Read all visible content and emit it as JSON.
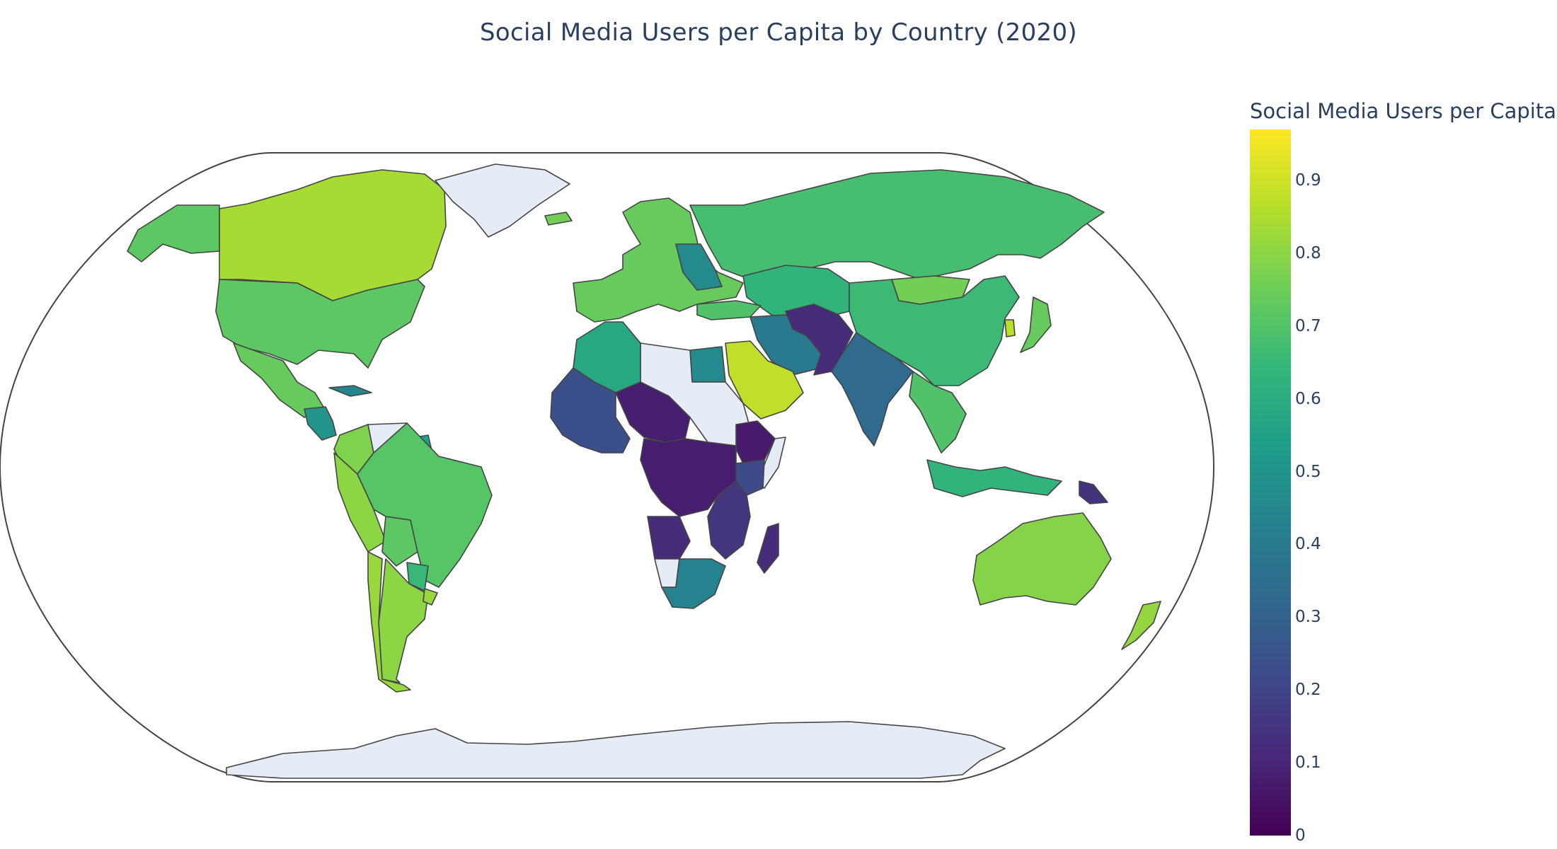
{
  "chart_data": {
    "type": "choropleth",
    "title": "Social Media Users per Capita by Country (2020)",
    "projection": "natural earth",
    "colorscale": "Viridis",
    "colorbar": {
      "title": "Social Media Users per Capita",
      "range": [
        0,
        0.97
      ],
      "ticks": [
        "0",
        "0.1",
        "0.2",
        "0.3",
        "0.4",
        "0.5",
        "0.6",
        "0.7",
        "0.8",
        "0.9"
      ]
    },
    "missing_color": "#e5ecf6",
    "border_color": "#444444",
    "countries": [
      {
        "name": "Canada",
        "value": 0.84
      },
      {
        "name": "United States",
        "value": 0.72
      },
      {
        "name": "Alaska (United States)",
        "value": 0.72
      },
      {
        "name": "Mexico",
        "value": 0.74
      },
      {
        "name": "Central America",
        "value": 0.5
      },
      {
        "name": "Cuba",
        "value": 0.45
      },
      {
        "name": "Colombia",
        "value": 0.78
      },
      {
        "name": "Venezuela",
        "value": null
      },
      {
        "name": "Guyana / Suriname",
        "value": 0.55
      },
      {
        "name": "Peru",
        "value": 0.8
      },
      {
        "name": "Bolivia",
        "value": 0.72
      },
      {
        "name": "Brazil",
        "value": 0.71
      },
      {
        "name": "Paraguay",
        "value": 0.65
      },
      {
        "name": "Argentina",
        "value": 0.8
      },
      {
        "name": "Chile",
        "value": 0.82
      },
      {
        "name": "Uruguay",
        "value": 0.82
      },
      {
        "name": "Greenland",
        "value": null
      },
      {
        "name": "Iceland",
        "value": 0.76
      },
      {
        "name": "Europe",
        "value": 0.74
      },
      {
        "name": "Ukraine / Belarus",
        "value": 0.46
      },
      {
        "name": "Russia",
        "value": 0.68
      },
      {
        "name": "Kazakhstan",
        "value": 0.63
      },
      {
        "name": "Mongolia",
        "value": 0.76
      },
      {
        "name": "China",
        "value": 0.66
      },
      {
        "name": "Japan",
        "value": 0.74
      },
      {
        "name": "South Korea",
        "value": 0.87
      },
      {
        "name": "Turkey",
        "value": 0.7
      },
      {
        "name": "Iran",
        "value": 0.4
      },
      {
        "name": "Afghanistan / Pakistan",
        "value": 0.12
      },
      {
        "name": "India",
        "value": 0.33
      },
      {
        "name": "Saudi Arabia / Arabian Peninsula",
        "value": 0.88
      },
      {
        "name": "Egypt",
        "value": 0.46
      },
      {
        "name": "Libya / Sudan",
        "value": null
      },
      {
        "name": "Algeria / Morocco",
        "value": 0.58
      },
      {
        "name": "West Africa",
        "value": 0.24
      },
      {
        "name": "Sahel",
        "value": 0.08
      },
      {
        "name": "Ethiopia",
        "value": 0.07
      },
      {
        "name": "Somalia",
        "value": null
      },
      {
        "name": "Kenya",
        "value": 0.22
      },
      {
        "name": "Central Africa",
        "value": 0.08
      },
      {
        "name": "East Africa",
        "value": 0.15
      },
      {
        "name": "Angola",
        "value": 0.12
      },
      {
        "name": "Namibia",
        "value": null
      },
      {
        "name": "South Africa",
        "value": 0.43
      },
      {
        "name": "Madagascar",
        "value": 0.12
      },
      {
        "name": "Southeast Asia",
        "value": 0.7
      },
      {
        "name": "Indonesia",
        "value": 0.63
      },
      {
        "name": "Papua New Guinea",
        "value": 0.14
      },
      {
        "name": "Australia",
        "value": 0.79
      },
      {
        "name": "New Zealand",
        "value": 0.81
      },
      {
        "name": "Antarctica",
        "value": null
      }
    ]
  }
}
